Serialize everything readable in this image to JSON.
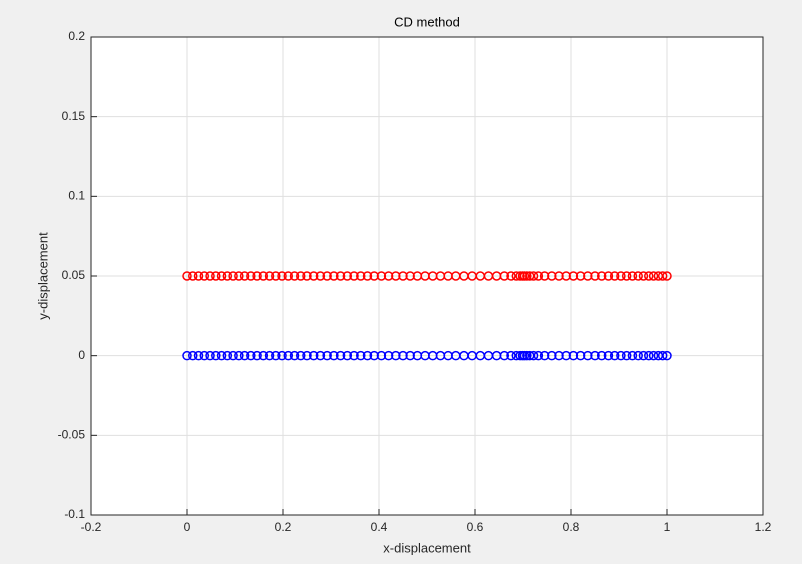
{
  "chart_data": {
    "type": "scatter",
    "title": "CD method",
    "x_label": "x-displacement",
    "y_label": "y-displacement",
    "x": [
      0,
      0.012,
      0.024,
      0.036,
      0.048,
      0.06,
      0.072,
      0.084,
      0.096,
      0.108,
      0.12,
      0.133,
      0.146,
      0.159,
      0.172,
      0.185,
      0.198,
      0.211,
      0.224,
      0.237,
      0.25,
      0.264,
      0.278,
      0.292,
      0.306,
      0.32,
      0.334,
      0.348,
      0.362,
      0.376,
      0.39,
      0.405,
      0.42,
      0.435,
      0.45,
      0.465,
      0.48,
      0.496,
      0.512,
      0.528,
      0.544,
      0.56,
      0.577,
      0.594,
      0.611,
      0.628,
      0.645,
      0.661,
      0.675,
      0.686,
      0.694,
      0.699,
      0.703,
      0.708,
      0.714,
      0.722,
      0.732,
      0.745,
      0.76,
      0.775,
      0.79,
      0.805,
      0.82,
      0.835,
      0.85,
      0.864,
      0.878,
      0.891,
      0.904,
      0.916,
      0.928,
      0.94,
      0.951,
      0.962,
      0.972,
      0.982,
      0.991,
      1.0
    ],
    "series": [
      {
        "color": "#ff0000",
        "values": [
          0.05,
          0.05,
          0.05,
          0.05,
          0.05,
          0.05,
          0.05,
          0.05,
          0.05,
          0.05,
          0.05,
          0.05,
          0.05,
          0.05,
          0.05,
          0.05,
          0.05,
          0.05,
          0.05,
          0.05,
          0.05,
          0.05,
          0.05,
          0.05,
          0.05,
          0.05,
          0.05,
          0.05,
          0.05,
          0.05,
          0.05,
          0.05,
          0.05,
          0.05,
          0.05,
          0.05,
          0.05,
          0.05,
          0.05,
          0.05,
          0.05,
          0.05,
          0.05,
          0.05,
          0.05,
          0.05,
          0.05,
          0.05,
          0.05,
          0.05,
          0.05,
          0.05,
          0.05,
          0.05,
          0.05,
          0.05,
          0.05,
          0.05,
          0.05,
          0.05,
          0.05,
          0.05,
          0.05,
          0.05,
          0.05,
          0.05,
          0.05,
          0.05,
          0.05,
          0.05,
          0.05,
          0.05,
          0.05,
          0.05,
          0.05,
          0.05,
          0.05,
          0.05
        ]
      },
      {
        "color": "#0000ff",
        "values": [
          0,
          0,
          0,
          0,
          0,
          0,
          0,
          0,
          0,
          0,
          0,
          0,
          0,
          0,
          0,
          0,
          0,
          0,
          0,
          0,
          0,
          0,
          0,
          0,
          0,
          0,
          0,
          0,
          0,
          0,
          0,
          0,
          0,
          0,
          0,
          0,
          0,
          0,
          0,
          0,
          0,
          0,
          0,
          0,
          0,
          0,
          0,
          0,
          0,
          0,
          0,
          0,
          0,
          0,
          0,
          0,
          0,
          0,
          0,
          0,
          0,
          0,
          0,
          0,
          0,
          0,
          0,
          0,
          0,
          0,
          0,
          0,
          0,
          0,
          0,
          0,
          0,
          0
        ]
      }
    ],
    "xlim": [
      -0.2,
      1.2
    ],
    "xticks": [
      -0.2,
      0,
      0.2,
      0.4,
      0.6,
      0.8,
      1,
      1.2
    ],
    "ylim": [
      -0.1,
      0.2
    ],
    "yticks": [
      -0.1,
      -0.05,
      0,
      0.05,
      0.1,
      0.15,
      0.2
    ],
    "grid": true
  }
}
